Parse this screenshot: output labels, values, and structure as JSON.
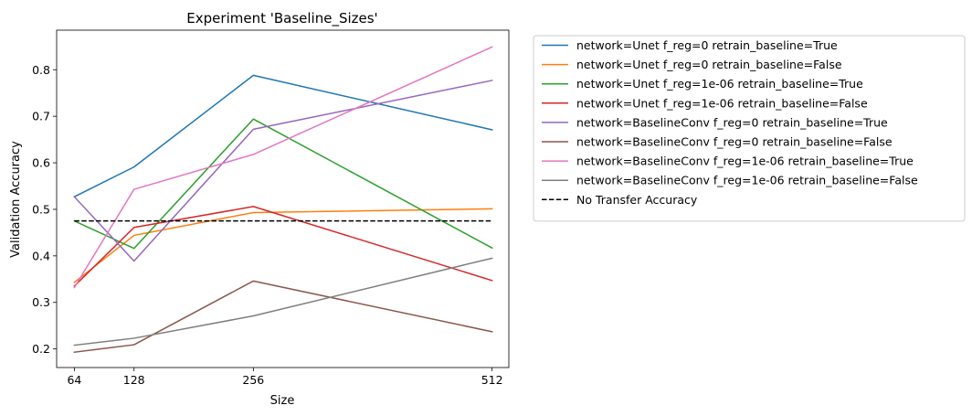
{
  "chart_data": {
    "type": "line",
    "title": "Experiment 'Baseline_Sizes'",
    "xlabel": "Size",
    "ylabel": "Validation Accuracy",
    "x": [
      64,
      128,
      256,
      512
    ],
    "xticks": [
      64,
      128,
      256,
      512
    ],
    "xticklabels": [
      "64",
      "128",
      "256",
      "512"
    ],
    "xlim": [
      45,
      530
    ],
    "yticks": [
      0.2,
      0.3,
      0.4,
      0.5,
      0.6,
      0.7,
      0.8
    ],
    "yticklabels": [
      "0.2",
      "0.3",
      "0.4",
      "0.5",
      "0.6",
      "0.7",
      "0.8"
    ],
    "ylim": [
      0.16,
      0.885
    ],
    "grid": false,
    "legend_position": "outside-right",
    "series": [
      {
        "name": "network=Unet f_reg=0 retrain_baseline=True",
        "color": "#1f77b4",
        "style": "solid",
        "values": [
          0.527,
          0.591,
          0.788,
          0.671
        ]
      },
      {
        "name": "network=Unet f_reg=0 retrain_baseline=False",
        "color": "#ff7f0e",
        "style": "solid",
        "values": [
          0.343,
          0.444,
          0.493,
          0.501
        ]
      },
      {
        "name": "network=Unet f_reg=1e-06 retrain_baseline=True",
        "color": "#2ca02c",
        "style": "solid",
        "values": [
          0.475,
          0.416,
          0.694,
          0.417
        ]
      },
      {
        "name": "network=Unet f_reg=1e-06 retrain_baseline=False",
        "color": "#d62728",
        "style": "solid",
        "values": [
          0.335,
          0.461,
          0.506,
          0.347
        ]
      },
      {
        "name": "network=BaselineConv f_reg=0 retrain_baseline=True",
        "color": "#9467bd",
        "style": "solid",
        "values": [
          0.527,
          0.389,
          0.672,
          0.777
        ]
      },
      {
        "name": "network=BaselineConv f_reg=0 retrain_baseline=False",
        "color": "#8c564b",
        "style": "solid",
        "values": [
          0.193,
          0.209,
          0.346,
          0.237
        ]
      },
      {
        "name": "network=BaselineConv f_reg=1e-06 retrain_baseline=True",
        "color": "#e377c2",
        "style": "solid",
        "values": [
          0.332,
          0.543,
          0.618,
          0.849
        ]
      },
      {
        "name": "network=BaselineConv f_reg=1e-06 retrain_baseline=False",
        "color": "#7f7f7f",
        "style": "solid",
        "values": [
          0.208,
          0.223,
          0.271,
          0.395
        ]
      },
      {
        "name": "No Transfer Accuracy",
        "color": "#000000",
        "style": "dashed",
        "values": [
          0.475,
          0.475,
          0.475,
          0.475
        ]
      }
    ]
  }
}
